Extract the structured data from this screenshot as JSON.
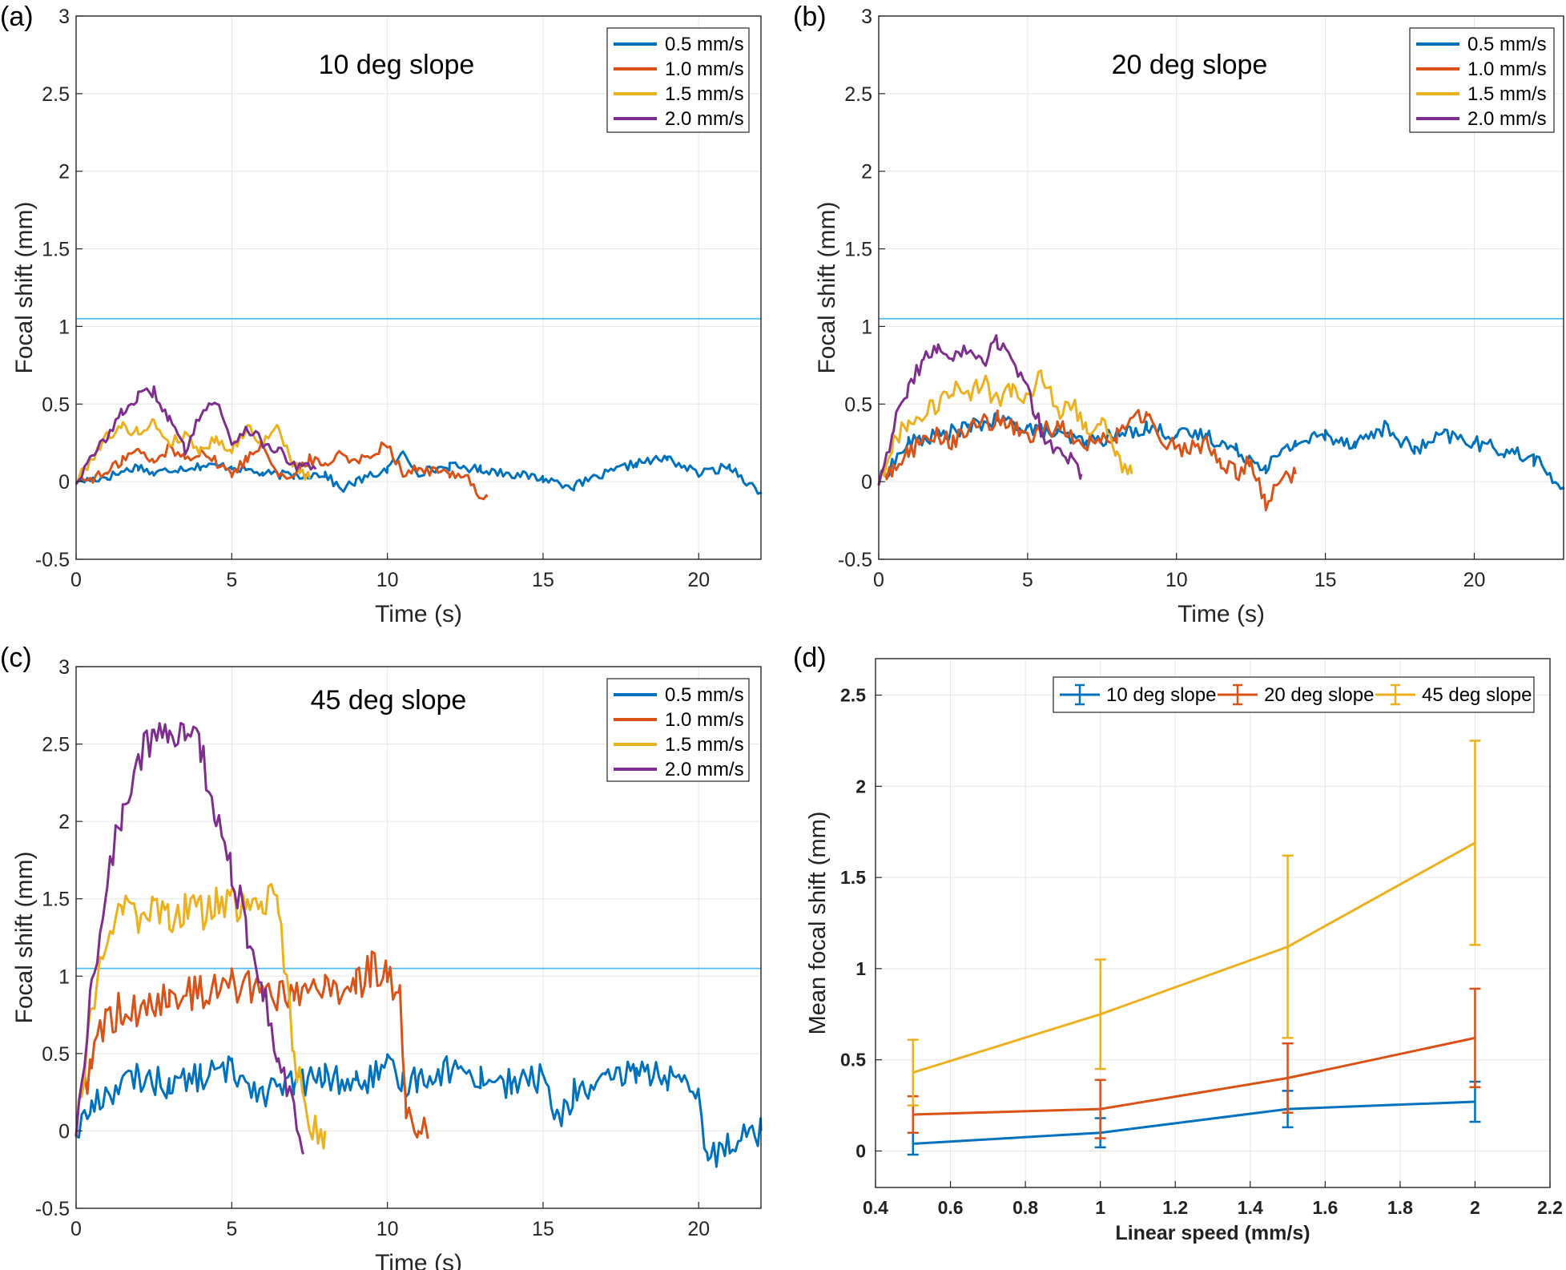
{
  "chart_data": [
    {
      "panel": "(a)",
      "type": "line",
      "title": "10 deg slope",
      "xlabel": "Time (s)",
      "ylabel": "Focal shift (mm)",
      "xlim": [
        0,
        22
      ],
      "ylim": [
        -0.5,
        3
      ],
      "xticks": [
        0,
        5,
        10,
        15,
        20
      ],
      "yticks": [
        -0.5,
        0,
        0.5,
        1,
        1.5,
        2,
        2.5,
        3
      ],
      "threshold": 1.05,
      "legend_location": "top-right",
      "series": [
        {
          "name": "0.5 mm/s",
          "color": "#0072BD",
          "x": [
            0,
            1,
            2,
            2.5,
            3,
            4,
            5,
            6,
            7,
            8,
            8.5,
            9,
            10,
            10.5,
            11,
            12,
            13,
            14,
            15,
            16,
            17,
            18,
            19,
            20,
            21,
            22
          ],
          "y": [
            0,
            0.03,
            0.1,
            0.05,
            0.08,
            0.1,
            0.1,
            0.05,
            0.04,
            0.05,
            -0.05,
            0,
            0.08,
            0.18,
            0.06,
            0.1,
            0.08,
            0.05,
            0.02,
            -0.03,
            0.05,
            0.12,
            0.15,
            0.05,
            0.1,
            -0.08
          ]
        },
        {
          "name": "1.0 mm/s",
          "color": "#D95319",
          "x": [
            0,
            1,
            1.5,
            2,
            2.5,
            3,
            3.5,
            4,
            5,
            5.5,
            6,
            6.5,
            7,
            7.5,
            8,
            8.5,
            9,
            10,
            10.5,
            11,
            12,
            12.5,
            13,
            13.2
          ],
          "y": [
            0,
            0.05,
            0.15,
            0.2,
            0.12,
            0.22,
            0.15,
            0.2,
            0.05,
            0.15,
            0.25,
            0.05,
            0.02,
            0.15,
            0.1,
            0.2,
            0.12,
            0.25,
            0.05,
            0.08,
            0.05,
            0.05,
            -0.1,
            -0.1
          ]
        },
        {
          "name": "1.5 mm/s",
          "color": "#EDB120",
          "x": [
            0,
            0.5,
            1,
            1.5,
            2,
            2.5,
            3,
            3.5,
            4,
            4.5,
            5,
            5.5,
            6,
            6.5,
            7,
            7.5
          ],
          "y": [
            0,
            0.15,
            0.3,
            0.35,
            0.32,
            0.38,
            0.25,
            0.3,
            0.2,
            0.28,
            0.2,
            0.35,
            0.25,
            0.35,
            0.1,
            0.02
          ]
        },
        {
          "name": "2.0 mm/s",
          "color": "#7E2F8E",
          "x": [
            0,
            0.5,
            1,
            1.5,
            2,
            2.5,
            3,
            3.5,
            4,
            4.5,
            5,
            5.5,
            6,
            6.5,
            7,
            7.7
          ],
          "y": [
            0,
            0.15,
            0.3,
            0.45,
            0.55,
            0.58,
            0.4,
            0.2,
            0.45,
            0.52,
            0.25,
            0.35,
            0.25,
            0.2,
            0.1,
            0.08
          ]
        }
      ]
    },
    {
      "panel": "(b)",
      "type": "line",
      "title": "20 deg slope",
      "xlabel": "Time (s)",
      "ylabel": "Focal shift (mm)",
      "xlim": [
        0,
        23
      ],
      "ylim": [
        -0.5,
        3
      ],
      "xticks": [
        0,
        5,
        10,
        15,
        20
      ],
      "yticks": [
        -0.5,
        0,
        0.5,
        1,
        1.5,
        2,
        2.5,
        3
      ],
      "threshold": 1.05,
      "legend_location": "top-right",
      "series": [
        {
          "name": "0.5 mm/s",
          "color": "#0072BD",
          "x": [
            0,
            1,
            2,
            3,
            4,
            5,
            6,
            7,
            8,
            9,
            10,
            11,
            12,
            13,
            14,
            15,
            16,
            17,
            18,
            19,
            20,
            21,
            22,
            23
          ],
          "y": [
            0,
            0.25,
            0.3,
            0.35,
            0.4,
            0.35,
            0.3,
            0.25,
            0.3,
            0.35,
            0.3,
            0.3,
            0.2,
            0.1,
            0.25,
            0.3,
            0.25,
            0.35,
            0.2,
            0.3,
            0.25,
            0.2,
            0.15,
            -0.05
          ]
        },
        {
          "name": "1.0 mm/s",
          "color": "#D95319",
          "x": [
            0,
            0.5,
            1,
            1.5,
            2,
            2.5,
            3,
            4,
            5,
            6,
            7,
            8,
            9,
            9.5,
            10,
            11,
            11.5,
            12,
            12.5,
            13,
            13.5,
            14
          ],
          "y": [
            0,
            0.1,
            0.2,
            0.25,
            0.3,
            0.25,
            0.35,
            0.4,
            0.3,
            0.35,
            0.25,
            0.3,
            0.45,
            0.3,
            0.2,
            0.25,
            0.1,
            0.05,
            0.15,
            -0.15,
            0.05,
            0.05
          ]
        },
        {
          "name": "1.5 mm/s",
          "color": "#EDB120",
          "x": [
            0,
            0.5,
            1,
            2,
            2.5,
            3,
            3.5,
            4,
            4.5,
            5,
            5.5,
            6,
            6.5,
            7,
            7.5,
            8,
            8.5
          ],
          "y": [
            0,
            0.25,
            0.4,
            0.5,
            0.6,
            0.55,
            0.65,
            0.5,
            0.6,
            0.55,
            0.7,
            0.45,
            0.5,
            0.35,
            0.4,
            0.15,
            0.05
          ]
        },
        {
          "name": "2.0 mm/s",
          "color": "#7E2F8E",
          "x": [
            0,
            0.5,
            1,
            1.5,
            2,
            2.5,
            3,
            3.5,
            4,
            4.5,
            5,
            5.5,
            6,
            6.5,
            6.8
          ],
          "y": [
            0,
            0.35,
            0.6,
            0.8,
            0.85,
            0.8,
            0.85,
            0.75,
            0.9,
            0.8,
            0.6,
            0.3,
            0.2,
            0.15,
            0.05
          ]
        }
      ]
    },
    {
      "panel": "(c)",
      "type": "line",
      "title": "45 deg slope",
      "xlabel": "Time (s)",
      "ylabel": "Focal shift (mm)",
      "xlim": [
        0,
        22
      ],
      "ylim": [
        -0.5,
        3
      ],
      "xticks": [
        0,
        5,
        10,
        15,
        20
      ],
      "yticks": [
        -0.5,
        0,
        0.5,
        1,
        1.5,
        2,
        2.5,
        3
      ],
      "threshold": 1.05,
      "legend_location": "top-right",
      "series": [
        {
          "name": "0.5 mm/s",
          "color": "#0072BD",
          "x": [
            0,
            0.5,
            1,
            1.5,
            2,
            3,
            4,
            5,
            6,
            7,
            8,
            9,
            10,
            10.5,
            11,
            12,
            13,
            14,
            15,
            15.5,
            16,
            17,
            18,
            19,
            20,
            20.3,
            21,
            22
          ],
          "y": [
            0,
            0.15,
            0.25,
            0.3,
            0.35,
            0.3,
            0.35,
            0.4,
            0.25,
            0.3,
            0.35,
            0.3,
            0.4,
            0.3,
            0.35,
            0.4,
            0.35,
            0.3,
            0.35,
            0.05,
            0.25,
            0.3,
            0.4,
            0.35,
            0.2,
            -0.2,
            -0.05,
            0
          ]
        },
        {
          "name": "1.0 mm/s",
          "color": "#D95319",
          "x": [
            0,
            0.5,
            1,
            1.5,
            2,
            3,
            4,
            5,
            6,
            7,
            8,
            9,
            9.5,
            10,
            10.4,
            10.6,
            11,
            11.3
          ],
          "y": [
            0,
            0.5,
            0.7,
            0.8,
            0.75,
            0.85,
            0.9,
            0.95,
            0.9,
            0.85,
            0.9,
            0.95,
            1.05,
            1.0,
            0.85,
            0.1,
            0.05,
            -0.05
          ]
        },
        {
          "name": "1.5 mm/s",
          "color": "#EDB120",
          "x": [
            0,
            0.5,
            1,
            1.5,
            2,
            2.5,
            3,
            3.5,
            4,
            4.5,
            5,
            5.5,
            6,
            6.5,
            7,
            7.5,
            8
          ],
          "y": [
            0,
            0.8,
            1.3,
            1.45,
            1.4,
            1.5,
            1.35,
            1.45,
            1.4,
            1.5,
            1.45,
            1.5,
            1.45,
            1.5,
            0.5,
            0,
            0
          ]
        },
        {
          "name": "2.0 mm/s",
          "color": "#7E2F8E",
          "x": [
            0,
            0.5,
            1,
            1.5,
            2,
            2.5,
            3,
            3.5,
            4,
            4.5,
            5,
            5.5,
            6,
            6.5,
            7,
            7.3
          ],
          "y": [
            0,
            0.9,
            1.6,
            2.1,
            2.4,
            2.55,
            2.5,
            2.6,
            2.45,
            2.0,
            1.7,
            1.3,
            0.9,
            0.5,
            0.15,
            -0.15
          ]
        }
      ]
    },
    {
      "panel": "(d)",
      "type": "line",
      "title": "",
      "xlabel": "Linear speed (mm/s)",
      "ylabel": "Mean focal shift (mm)",
      "xlim": [
        0.4,
        2.2
      ],
      "ylim": [
        -0.2,
        2.7
      ],
      "xticks": [
        0.4,
        0.6,
        0.8,
        1,
        1.2,
        1.4,
        1.6,
        1.8,
        2,
        2.2
      ],
      "yticks": [
        0,
        0.5,
        1,
        1.5,
        2,
        2.5
      ],
      "legend_location": "top",
      "error_bars": true,
      "categories": [
        0.5,
        1,
        1.5,
        2
      ],
      "series": [
        {
          "name": "10 deg slope",
          "color": "#0072BD",
          "values": [
            0.04,
            0.1,
            0.23,
            0.27
          ],
          "errors": [
            0.06,
            0.08,
            0.1,
            0.11
          ]
        },
        {
          "name": "20 deg slope",
          "color": "#D95319",
          "values": [
            0.2,
            0.23,
            0.4,
            0.62
          ],
          "errors": [
            0.1,
            0.16,
            0.19,
            0.27
          ]
        },
        {
          "name": "45 deg slope",
          "color": "#EDB120",
          "values": [
            0.43,
            0.75,
            1.12,
            1.69
          ],
          "errors": [
            0.18,
            0.3,
            0.5,
            0.56
          ]
        }
      ]
    }
  ]
}
